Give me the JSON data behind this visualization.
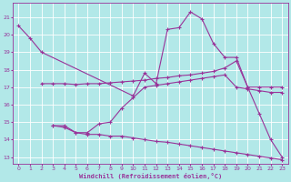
{
  "background_color": "#b2e8e8",
  "grid_color": "#ffffff",
  "line_color": "#993399",
  "xlabel": "Windchill (Refroidissement éolien,°C)",
  "xlim": [
    -0.5,
    23.5
  ],
  "ylim": [
    12.6,
    21.8
  ],
  "yticks": [
    13,
    14,
    15,
    16,
    17,
    18,
    19,
    20,
    21
  ],
  "xticks": [
    0,
    1,
    2,
    3,
    4,
    5,
    6,
    7,
    8,
    9,
    10,
    11,
    12,
    13,
    14,
    15,
    16,
    17,
    18,
    19,
    20,
    21,
    22,
    23
  ],
  "line1_x": [
    0,
    1,
    2,
    10,
    11,
    12,
    13,
    14,
    15,
    16,
    17,
    18,
    19,
    20,
    21,
    22,
    23
  ],
  "line1_y": [
    20.5,
    19.8,
    19.0,
    16.5,
    17.8,
    17.2,
    20.3,
    20.4,
    21.3,
    20.9,
    19.5,
    18.7,
    18.7,
    17.0,
    15.5,
    14.0,
    13.0
  ],
  "line2_x": [
    2,
    3,
    4,
    5,
    6,
    7,
    8,
    9,
    10,
    11,
    12,
    13,
    14,
    15,
    16,
    17,
    18,
    19,
    20,
    21,
    22,
    23
  ],
  "line2_y": [
    17.2,
    17.2,
    17.2,
    17.15,
    17.2,
    17.2,
    17.25,
    17.3,
    17.35,
    17.4,
    17.5,
    17.55,
    17.65,
    17.7,
    17.8,
    17.9,
    18.1,
    18.5,
    17.0,
    17.0,
    17.0,
    17.0
  ],
  "line3_x": [
    3,
    4,
    5,
    6,
    7,
    8,
    9,
    10,
    11,
    12,
    13,
    14,
    15,
    16,
    17,
    18,
    19,
    20,
    21,
    22,
    23
  ],
  "line3_y": [
    14.8,
    14.8,
    14.4,
    14.4,
    14.9,
    15.0,
    15.8,
    16.4,
    17.0,
    17.1,
    17.2,
    17.3,
    17.4,
    17.5,
    17.6,
    17.7,
    17.0,
    16.9,
    16.8,
    16.7,
    16.7
  ],
  "line4_x": [
    3,
    4,
    5,
    6,
    7,
    8,
    9,
    10,
    11,
    12,
    13,
    14,
    15,
    16,
    17,
    18,
    19,
    20,
    21,
    22,
    23
  ],
  "line4_y": [
    14.8,
    14.7,
    14.4,
    14.3,
    14.3,
    14.2,
    14.2,
    14.1,
    14.0,
    13.9,
    13.85,
    13.75,
    13.65,
    13.55,
    13.45,
    13.35,
    13.25,
    13.15,
    13.05,
    12.95,
    12.85
  ]
}
